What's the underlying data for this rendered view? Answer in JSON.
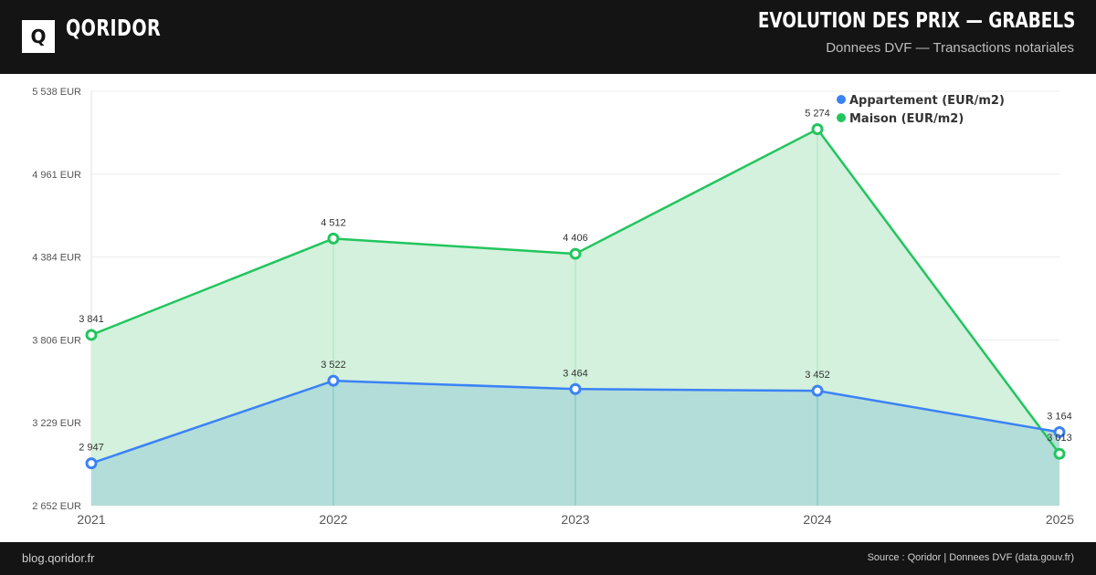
{
  "header": {
    "logo_letter": "Q",
    "brand": "QORIDOR",
    "title": "EVOLUTION DES PRIX — GRABELS",
    "subtitle": "Donnees DVF — Transactions notariales"
  },
  "footer": {
    "left": "blog.qoridor.fr",
    "right": "Source : Qoridor | Donnees DVF (data.gouv.fr)"
  },
  "chart_data": {
    "type": "area",
    "title": "",
    "xlabel": "",
    "ylabel": "",
    "categories": [
      "2021",
      "2022",
      "2023",
      "2024",
      "2025"
    ],
    "y_ticks": [
      "2 652 EUR",
      "3 229 EUR",
      "3 806 EUR",
      "4 384 EUR",
      "4 961 EUR",
      "5 538 EUR"
    ],
    "ylim": [
      2652,
      5538
    ],
    "grid": true,
    "legend_position": "top-right",
    "series": [
      {
        "name": "Appartement (EUR/m2)",
        "color": "#3b82f6",
        "fill": "#b3ddd9",
        "values": [
          2947,
          3522,
          3464,
          3452,
          3164
        ],
        "labels": [
          "2 947",
          "3 522",
          "3 464",
          "3 452",
          "3 164"
        ]
      },
      {
        "name": "Maison (EUR/m2)",
        "color": "#22c55e",
        "fill": "#d3f1dc",
        "values": [
          3841,
          4512,
          4406,
          5274,
          3013
        ],
        "labels": [
          "3 841",
          "4 512",
          "4 406",
          "5 274",
          "3 013"
        ]
      }
    ]
  }
}
